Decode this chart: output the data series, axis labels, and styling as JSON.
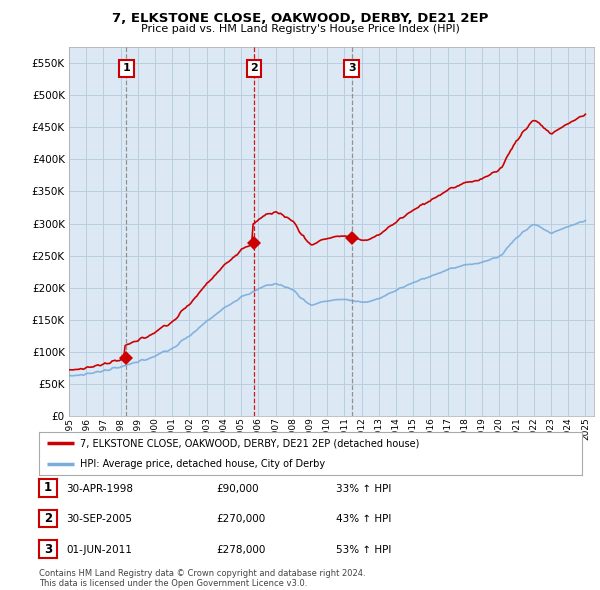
{
  "title": "7, ELKSTONE CLOSE, OAKWOOD, DERBY, DE21 2EP",
  "subtitle": "Price paid vs. HM Land Registry's House Price Index (HPI)",
  "ylim": [
    0,
    575000
  ],
  "yticks": [
    0,
    50000,
    100000,
    150000,
    200000,
    250000,
    300000,
    350000,
    400000,
    450000,
    500000,
    550000
  ],
  "xlim_start": 1995.0,
  "xlim_end": 2025.5,
  "sales": [
    {
      "year": 1998.33,
      "price": 90000,
      "label": "1"
    },
    {
      "year": 2005.75,
      "price": 270000,
      "label": "2"
    },
    {
      "year": 2011.42,
      "price": 278000,
      "label": "3"
    }
  ],
  "property_color": "#cc0000",
  "hpi_color": "#7aacdc",
  "chart_bg": "#dce9f5",
  "background_color": "#ffffff",
  "grid_color": "#b8cfe0",
  "legend_entries": [
    "7, ELKSTONE CLOSE, OAKWOOD, DERBY, DE21 2EP (detached house)",
    "HPI: Average price, detached house, City of Derby"
  ],
  "table_rows": [
    {
      "num": "1",
      "date": "30-APR-1998",
      "price": "£90,000",
      "hpi": "33% ↑ HPI"
    },
    {
      "num": "2",
      "date": "30-SEP-2005",
      "price": "£270,000",
      "hpi": "43% ↑ HPI"
    },
    {
      "num": "3",
      "date": "01-JUN-2011",
      "price": "£278,000",
      "hpi": "53% ↑ HPI"
    }
  ],
  "footnote": "Contains HM Land Registry data © Crown copyright and database right 2024.\nThis data is licensed under the Open Government Licence v3.0."
}
